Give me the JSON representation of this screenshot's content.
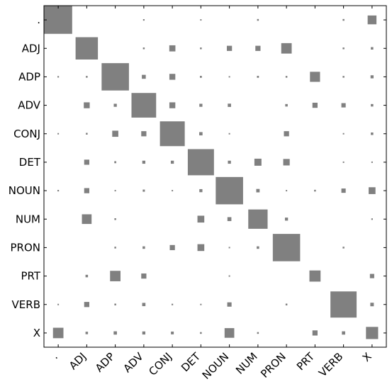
{
  "chart_data": {
    "type": "heatmap",
    "title": "",
    "xlabel": "",
    "ylabel": "",
    "categories": [
      ".",
      "ADJ",
      "ADP",
      "ADV",
      "CONJ",
      "DET",
      "NOUN",
      "NUM",
      "PRON",
      "PRT",
      "VERB",
      "X"
    ],
    "marker_shape": "square",
    "marker_area_encodes_value": true,
    "grid": false,
    "matrix": [
      [
        1.0,
        0.0,
        0.0,
        0.003,
        0.0,
        0.002,
        0.0,
        0.004,
        0.0,
        0.0,
        0.004,
        0.1
      ],
      [
        0.0,
        0.64,
        0.0,
        0.004,
        0.048,
        0.004,
        0.034,
        0.034,
        0.14,
        0.0,
        0.004,
        0.008
      ],
      [
        0.003,
        0.004,
        0.96,
        0.02,
        0.045,
        0.005,
        0.002,
        0.005,
        0.004,
        0.13,
        0.004,
        0.012
      ],
      [
        0.0,
        0.045,
        0.012,
        0.78,
        0.045,
        0.012,
        0.014,
        0.0,
        0.008,
        0.034,
        0.024,
        0.008
      ],
      [
        0.002,
        0.004,
        0.048,
        0.034,
        0.79,
        0.014,
        0.001,
        0.0,
        0.034,
        0.0,
        0.002,
        0.008
      ],
      [
        0.0,
        0.034,
        0.005,
        0.012,
        0.012,
        0.88,
        0.012,
        0.064,
        0.054,
        0.0,
        0.002,
        0.002
      ],
      [
        0.003,
        0.034,
        0.001,
        0.006,
        0.002,
        0.012,
        0.96,
        0.015,
        0.001,
        0.004,
        0.024,
        0.06
      ],
      [
        0.0,
        0.12,
        0.004,
        0.0,
        0.0,
        0.06,
        0.02,
        0.48,
        0.012,
        0.0,
        0.0,
        0.003
      ],
      [
        0.0,
        0.0,
        0.004,
        0.008,
        0.034,
        0.06,
        0.001,
        0.008,
        0.96,
        0.0,
        0.004,
        0.0
      ],
      [
        0.0,
        0.008,
        0.14,
        0.034,
        0.0,
        0.0,
        0.001,
        0.0,
        0.0,
        0.16,
        0.0,
        0.024
      ],
      [
        0.002,
        0.034,
        0.004,
        0.014,
        0.003,
        0.002,
        0.024,
        0.0,
        0.004,
        0.0,
        0.88,
        0.016
      ],
      [
        0.14,
        0.008,
        0.014,
        0.012,
        0.01,
        0.004,
        0.12,
        0.004,
        0.0,
        0.034,
        0.014,
        0.19
      ]
    ]
  },
  "colors": {
    "marker": "#808080",
    "axes": "#000000",
    "background": "#ffffff"
  }
}
